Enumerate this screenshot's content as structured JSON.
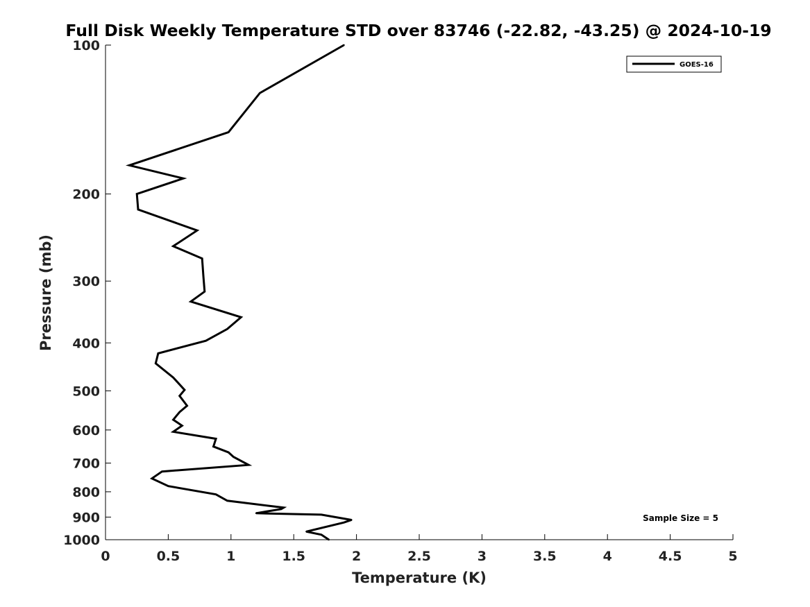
{
  "chart_data": {
    "type": "line",
    "title": "Full Disk Weekly Temperature STD over 83746 (-22.82, -43.25) @ 2024-10-19",
    "xlabel": "Temperature (K)",
    "ylabel": "Pressure (mb)",
    "xlim": [
      0,
      5
    ],
    "ylim": [
      100,
      1000
    ],
    "y_scale": "log",
    "y_inverted": true,
    "x_ticks": [
      0,
      0.5,
      1,
      1.5,
      2,
      2.5,
      3,
      3.5,
      4,
      4.5,
      5
    ],
    "x_tick_labels": [
      "0",
      "0.5",
      "1",
      "1.5",
      "2",
      "2.5",
      "3",
      "3.5",
      "4",
      "4.5",
      "5"
    ],
    "y_ticks": [
      100,
      200,
      300,
      400,
      500,
      600,
      700,
      800,
      900,
      1000
    ],
    "y_tick_labels": [
      "100",
      "200",
      "300",
      "400",
      "500",
      "600",
      "700",
      "800",
      "900",
      "1000"
    ],
    "grid": false,
    "legend_position": "top-right",
    "series": [
      {
        "name": "GOES-16",
        "color": "#000000",
        "points": [
          [
            1.9,
            100
          ],
          [
            1.23,
            125
          ],
          [
            0.98,
            150
          ],
          [
            0.19,
            175
          ],
          [
            0.62,
            186
          ],
          [
            0.25,
            200
          ],
          [
            0.26,
            215
          ],
          [
            0.73,
            237
          ],
          [
            0.54,
            255
          ],
          [
            0.77,
            270
          ],
          [
            0.78,
            293
          ],
          [
            0.79,
            315
          ],
          [
            0.68,
            330
          ],
          [
            1.08,
            355
          ],
          [
            0.97,
            375
          ],
          [
            0.8,
            396
          ],
          [
            0.42,
            420
          ],
          [
            0.4,
            440
          ],
          [
            0.54,
            470
          ],
          [
            0.63,
            498
          ],
          [
            0.59,
            512
          ],
          [
            0.65,
            536
          ],
          [
            0.59,
            552
          ],
          [
            0.54,
            572
          ],
          [
            0.61,
            588
          ],
          [
            0.54,
            605
          ],
          [
            0.88,
            625
          ],
          [
            0.86,
            648
          ],
          [
            0.98,
            666
          ],
          [
            1.02,
            680
          ],
          [
            1.14,
            706
          ],
          [
            0.45,
            728
          ],
          [
            0.37,
            752
          ],
          [
            0.5,
            779
          ],
          [
            0.88,
            810
          ],
          [
            0.97,
            834
          ],
          [
            1.42,
            861
          ],
          [
            1.4,
            867
          ],
          [
            1.2,
            884
          ],
          [
            1.72,
            890
          ],
          [
            1.96,
            912
          ],
          [
            1.9,
            923
          ],
          [
            1.6,
            963
          ],
          [
            1.72,
            977
          ],
          [
            1.78,
            1000
          ]
        ]
      }
    ],
    "annotations": [
      "Sample Size = 5"
    ]
  }
}
